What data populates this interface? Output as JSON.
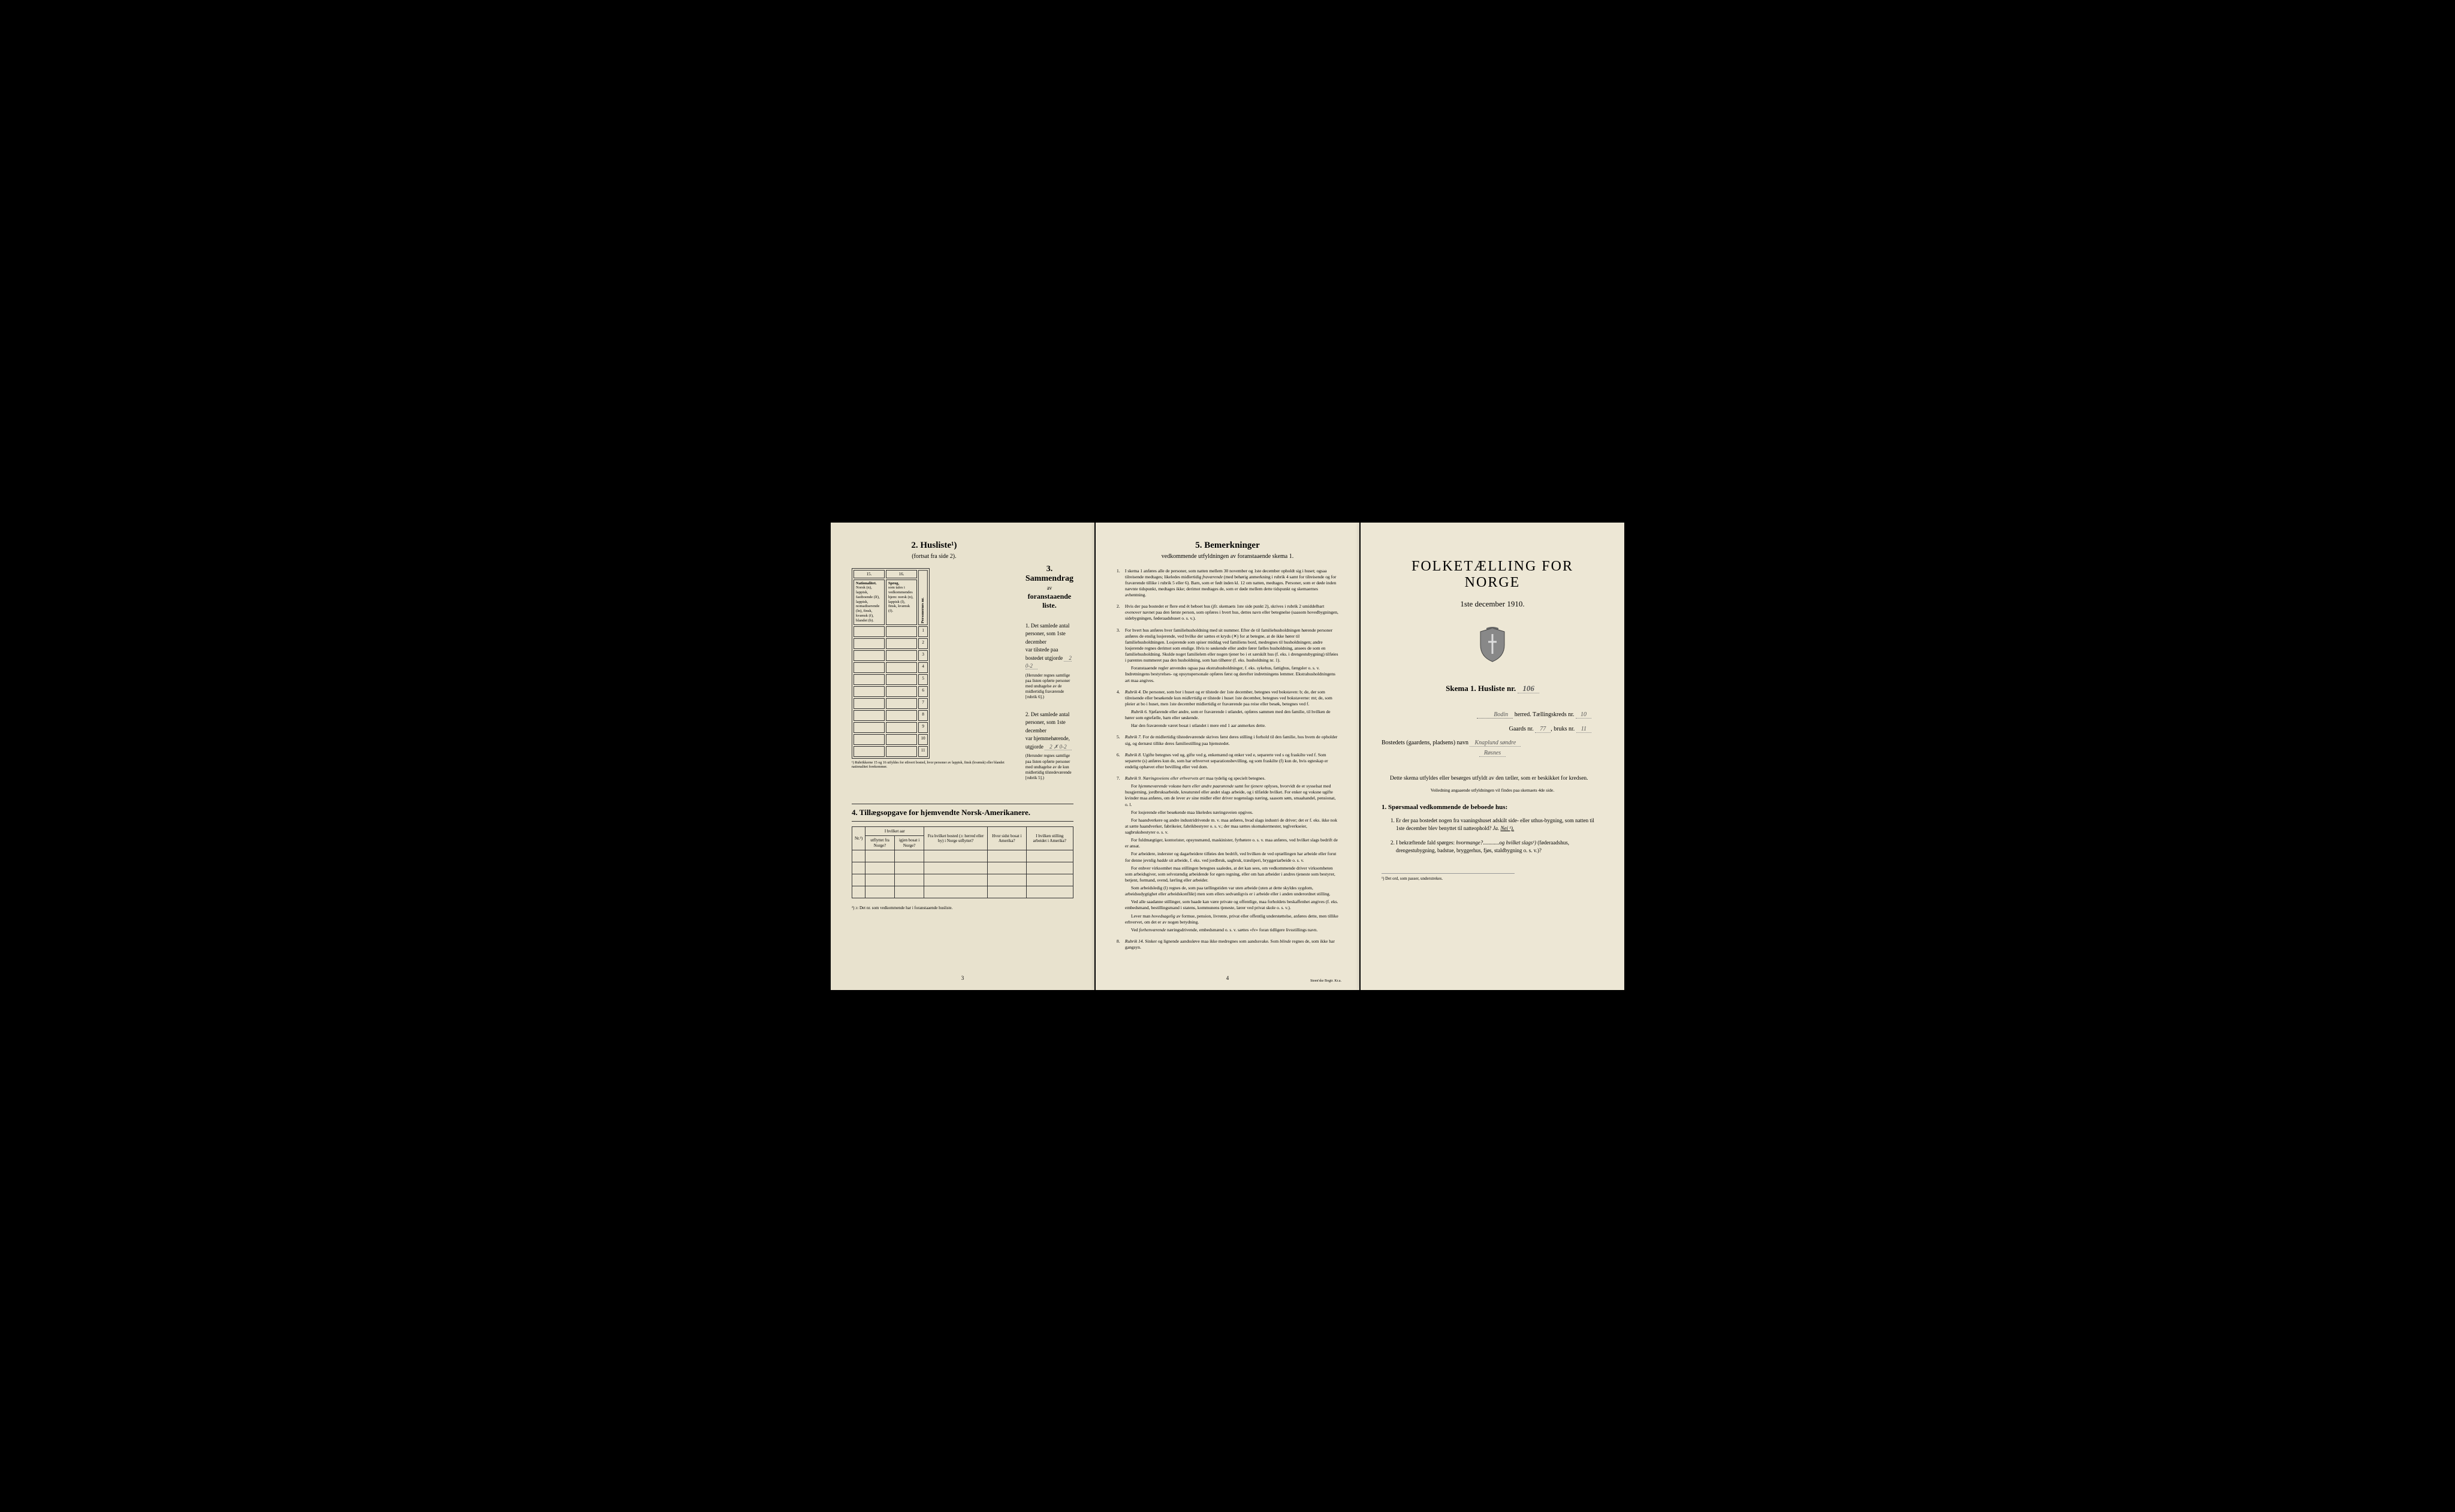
{
  "page1": {
    "husliste_title": "2. Husliste¹)",
    "husliste_sub": "(fortsat fra side 2).",
    "col15": "15.",
    "col16": "16.",
    "col15_header": "Nationalitet.",
    "col15_detail": "Norsk (n), lappisk, fastboende (lf), lappisk, nomadiserende (ln), finsk, kvænsk (f), blandet (b).",
    "col16_header": "Sprog,",
    "col16_detail": "som tales i vedkommendes hjem: norsk (n), lappisk (l), finsk, kvænsk (f).",
    "col_pers": "Personernes nr.",
    "row_nums": [
      "1",
      "2",
      "3",
      "4",
      "5",
      "6",
      "7",
      "8",
      "9",
      "10",
      "11"
    ],
    "footnote15": "¹) Rubrikkerne 15 og 16 utfyldes for ethvert bosted, hvor personer av lappisk, finsk (kvænsk) eller blandet nationalitet forekommer.",
    "sammendrag_title": "3. Sammendrag",
    "sammendrag_av": "av",
    "sammendrag_sub": "foranstaaende liste.",
    "item1_a": "1. Det samlede antal personer, som 1ste december",
    "item1_b": "var tilstede paa bostedet utgjorde",
    "item1_val": "2  0-2",
    "item1_note": "(Herunder regnes samtlige paa listen opførte personer med undtagelse av de midlertidig fraværende [rubrik 6].)",
    "item2_a": "2. Det samlede antal personer, som 1ste december",
    "item2_b": "var hjemmehørende, utgjorde",
    "item2_val": "2 ✗ 0-2",
    "item2_note": "(Herunder regnes samtlige paa listen opførte personer med undtagelse av de kun midlertidig tilstedeværende [rubrik 5].)",
    "tillaeg_title": "4. Tillægsopgave for hjemvendte Norsk-Amerikanere.",
    "th_nr": "Nr.²)",
    "th_aar": "I hvilket aar",
    "th_utflyttet": "utflyttet fra Norge?",
    "th_igjen": "igjen bosat i Norge?",
    "th_bosted": "Fra hvilket bosted (ɔ: herred eller by) i Norge utflyttet?",
    "th_sidst": "Hvor sidst bosat i Amerika?",
    "th_stilling": "I hvilken stilling arbeidet i Amerika?",
    "footnote2": "²) ɔ: Det nr. som vedkommende har i foranstaaende husliste.",
    "pagenum": "3"
  },
  "page2": {
    "title": "5. Bemerkninger",
    "subtitle": "vedkommende utfyldningen av foranstaaende skema 1.",
    "items": [
      {
        "n": "1.",
        "text": "I skema 1 anføres alle de personer, som natten mellem 30 november og 1ste december opholdt sig i huset; ogsaa tilreisende medtages; likeledes midlertidig <em>fraværende</em> (med behørig anmerkning i rubrik 4 samt for tilreisende og for fraværende tillike i rubrik 5 eller 6). Barn, som er født inden kl. 12 om natten, medtages. Personer, som er døde inden nævnte tidspunkt, medtages ikke; derimot medtages de, som er døde mellem dette tidspunkt og skemaernes avhentning."
      },
      {
        "n": "2.",
        "text": "Hvis der paa bostedet er flere end ét beboet hus (jfr. skemaets 1ste side punkt 2), skrives i rubrik 2 umiddelbart <em>ovenover</em> navnet paa den første person, som opføres i hvert hus, dettes navn eller betegnelse (saasom hovedbygningen, sidebygningen, føderaadshuset o. s. v.)."
      },
      {
        "n": "3.",
        "text": "For hvert hus anføres hver familiehusholdning med sit nummer. Efter de til familiehusholdningen hørende personer anføres de enslig losjerende, ved hvilke der sættes et kryds (✕) for at betegne, at de ikke hører til familiehusholdningen. Losjerende som spiser middag ved familiens bord, medregnes til husholdningen; andre losjerende regnes derimot som enslige. Hvis to søskende eller andre fører fælles husholdning, ansees de som en familiehusholdning. Skulde noget familielem eller nogen tjener bo i et særskilt hus (f. eks. i drengestubygning) tilføies i parentes nummeret paa den husholdning, som han tilhører (f. eks. husholdning nr. 1).",
        "extra": [
          "Foranstaaende regler anvendes ogsaa paa ekstrahusholdninger, f. eks. sykehus, fattighus, fængsler o. s. v. Indretningens bestyrelses- og opsynspersonale opføres først og derefter indretningens lemmer. Ekstrahusholdningens art maa angives."
        ]
      },
      {
        "n": "4.",
        "text": "<em>Rubrik 4.</em> De personer, som bor i huset og er tilstede der 1ste december, betegnes ved bokstaven: b; de, der som tilreisende eller besøkende kun <em>midlertidig</em> er tilstede i huset 1ste december, betegnes ved bokstaverne: mt; de, som pleier at bo i huset, men 1ste december midlertidig er fraværende paa reise eller besøk, betegnes ved f.",
        "extra": [
          "<em>Rubrik 6.</em> Sjøfarende eller andre, som er fraværende i utlandet, opføres sammen med den familie, til hvilken de hører som egtefælle, barn eller søskende.",
          "Har den fraværende været bosat i utlandet i mere end 1 aar anmerkes dette."
        ]
      },
      {
        "n": "5.",
        "text": "<em>Rubrik 7.</em> For de midlertidig tilstedeværende skrives først deres stilling i forhold til den familie, hos hvem de opholder sig, og dernæst tillike deres familiestilling paa hjemstedet."
      },
      {
        "n": "6.",
        "text": "<em>Rubrik 8.</em> Ugifte betegnes ved ug, gifte ved g, enkemænd og enker ved e, separerte ved s og fraskilte ved f. Som separerte (s) anføres kun de, som har erhvervet separationsbevilling, og som fraskilte (f) kun de, hvis egteskap er endelig ophævet efter bevilling eller ved dom."
      },
      {
        "n": "7.",
        "text": "<em>Rubrik 9. Næringsveiens eller erhvervets art</em> maa tydelig og specielt betegnes.",
        "extra": [
          "For <em>hjemmeværende</em> voksne <em>barn eller andre paarørende</em> samt for <em>tjenere</em> oplyses, hvorvidt de er sysselsat med husgjerning, jordbruksarbeide, kreaturstel eller andet slags arbeide, og i tilfælde hvilket. For enker og voksne ugifte kvinder maa anføres, om de lever av sine midler eller driver nogenslags næring, saasom søm, smaahandel, pensionat, o. l.",
          "For losjerende eller besøkende maa likeledes næringsveien opgives.",
          "For haandverkere og andre industridrivende m. v. maa anføres, hvad slags industri de driver; det er f. eks. ikke nok at sætte haandverker, fabrikeier, fabrikbestyrer o. s. v.; der maa sættes skomakermester, teglverkseier, sagbruksbestyrer o. s. v.",
          "For fuldmægtiger, kontorister, opsynsmænd, maskinister, fyrbøtere o. s. v. maa anføres, ved hvilket slags bedrift de er ansat.",
          "For arbeidere, inderster og dagarbeidere tilføies den bedrift, ved hvilken de ved optællingen har arbeide eller forut for denne jevnlig <em>hadde</em> sit arbeide, f. eks. ved jordbruk, sagbruk, træsliperi, bryggeriarbeide o. s. v.",
          "For enhver virksomhet maa stillingen betegnes saaledes, at det kan sees, om vedkommende driver virksomheten som arbeidsgiver, som selvstændig arbeidende for egen regning, eller om han arbeider i andres tjeneste som bestyrer, betjent, formand, svend, lærling eller arbeider.",
          "Som arbeidsledig (l) regnes de, som paa tællingstiden var uten arbeide (uten at dette skyldes sygdom, arbeidsudygtighet eller arbeidskonflikt) men som ellers sedvanligvis er i arbeide eller i anden underordnet stilling.",
          "Ved alle saadanne stillinger, som baade kan være private og offentlige, maa forholdets beskaffenhet angives (f. eks. embedsmand, bestillingsmand i statens, kommunens tjeneste, lærer ved privat skole o. s. v.).",
          "Lever man <em>hovedsagelig</em> av formue, pension, livrente, privat eller offentlig understøttelse, anføres dette, men tillike erhvervet, om det er av nogen betydning.",
          "Ved <em>forhenværende</em> næringsdrivende, embedsmænd o. s. v. sættes «fv» foran tidligere livsstillings navn."
        ]
      },
      {
        "n": "8.",
        "text": "<em>Rubrik 14.</em> Sinker og lignende aandssløve maa ikke medregnes som aandssvake. Som <em>blinde</em> regnes de, som ikke har gangsyn."
      }
    ],
    "pagenum": "4",
    "printer": "Steen'ske Bogtr. Kr.a."
  },
  "page3": {
    "title": "FOLKETÆLLING FOR NORGE",
    "date": "1ste december 1910.",
    "skema": "Skema 1.  Husliste nr.",
    "skema_val": "106",
    "herred_val": "Bodin",
    "herred_label": "herred.  Tællingskreds nr.",
    "kreds_val": "10",
    "gaard_label": "Gaards nr.",
    "gaard_val": "77",
    "bruk_label": "bruks nr.",
    "bruk_val": "11",
    "bosted_label": "Bostedets (gaardens, pladsens) navn",
    "bosted_val": "Knaplund søndre",
    "bosted_val2": "Røsnes",
    "instruction1": "Dette skema utfyldes eller besørges utfyldt av den tæller, som er beskikket for kredsen.",
    "instruction2": "Veiledning angaaende utfyldningen vil findes paa skemaets 4de side.",
    "q_header": "1. Spørsmaal vedkommende de beboede hus:",
    "q1": "Er der paa bostedet nogen fra vaaningshuset adskilt side- eller uthus-bygning, som natten til 1ste december blev benyttet til natteophold?",
    "q1_ja": "Ja.",
    "q1_nei": "Nei ¹).",
    "q2": "I bekræftende fald spørges: <em>hvormange?</em>............<em>og hvilket slags¹)</em> (føderaadshus, drengestubygning, badstue, bryggerhus, fjøs, staldbygning o. s. v.)?",
    "footnote": "¹) Det ord, som passer, understrekes."
  }
}
